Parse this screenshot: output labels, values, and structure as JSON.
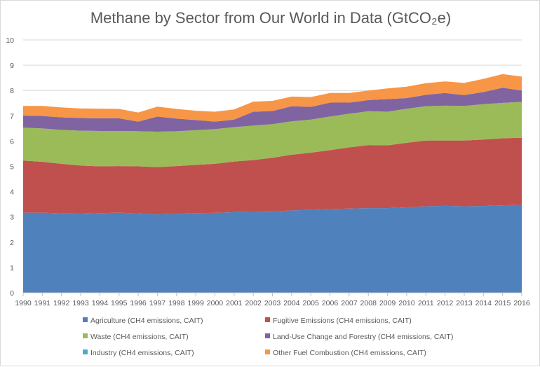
{
  "chart_data": {
    "type": "area",
    "stacked": true,
    "title": "Methane by Sector from Our World in Data (GtCO₂e)",
    "xlabel": "",
    "ylabel": "",
    "ylim": [
      0,
      10
    ],
    "yticks": [
      0,
      1,
      2,
      3,
      4,
      5,
      6,
      7,
      8,
      9,
      10
    ],
    "grid": true,
    "legend": "bottom",
    "x": [
      "1990",
      "1991",
      "1992",
      "1993",
      "1994",
      "1995",
      "1996",
      "1997",
      "1998",
      "1999",
      "2000",
      "2001",
      "2002",
      "2003",
      "2004",
      "2005",
      "2006",
      "2007",
      "2008",
      "2009",
      "2010",
      "2011",
      "2012",
      "2013",
      "2014",
      "2015",
      "2016"
    ],
    "series": [
      {
        "name": "Agriculture (CH4 emissions, CAIT)",
        "color": "#4f81bd",
        "values": [
          3.17,
          3.17,
          3.14,
          3.13,
          3.15,
          3.17,
          3.14,
          3.1,
          3.12,
          3.15,
          3.16,
          3.19,
          3.2,
          3.21,
          3.26,
          3.28,
          3.31,
          3.33,
          3.35,
          3.35,
          3.38,
          3.42,
          3.44,
          3.42,
          3.43,
          3.46,
          3.48
        ]
      },
      {
        "name": "Fugitive Emissions (CH4 emissions, CAIT)",
        "color": "#c0504d",
        "values": [
          2.06,
          2.01,
          1.96,
          1.9,
          1.85,
          1.84,
          1.86,
          1.87,
          1.89,
          1.91,
          1.94,
          2.0,
          2.05,
          2.13,
          2.2,
          2.26,
          2.33,
          2.42,
          2.49,
          2.48,
          2.55,
          2.6,
          2.58,
          2.6,
          2.63,
          2.65,
          2.65
        ]
      },
      {
        "name": "Waste (CH4 emissions, CAIT)",
        "color": "#9bbb59",
        "values": [
          1.3,
          1.32,
          1.34,
          1.38,
          1.4,
          1.39,
          1.39,
          1.4,
          1.38,
          1.37,
          1.37,
          1.36,
          1.36,
          1.33,
          1.32,
          1.31,
          1.33,
          1.33,
          1.34,
          1.33,
          1.35,
          1.36,
          1.38,
          1.37,
          1.4,
          1.4,
          1.42
        ]
      },
      {
        "name": "Land-Use Change and Forestry (CH4 emissions, CAIT)",
        "color": "#8064a2",
        "values": [
          0.48,
          0.49,
          0.5,
          0.5,
          0.5,
          0.5,
          0.38,
          0.6,
          0.5,
          0.4,
          0.3,
          0.3,
          0.55,
          0.52,
          0.6,
          0.5,
          0.55,
          0.44,
          0.44,
          0.5,
          0.42,
          0.45,
          0.5,
          0.43,
          0.48,
          0.6,
          0.45
        ]
      },
      {
        "name": "Industry (CH4 emissions, CAIT)",
        "color": "#4bacc6",
        "values": [
          0,
          0,
          0,
          0,
          0,
          0,
          0,
          0,
          0,
          0,
          0,
          0,
          0,
          0,
          0,
          0,
          0,
          0,
          0,
          0,
          0,
          0,
          0,
          0,
          0,
          0,
          0
        ]
      },
      {
        "name": "Other Fuel Combustion (CH4 emissions, CAIT)",
        "color": "#f79646",
        "values": [
          0.38,
          0.4,
          0.39,
          0.38,
          0.38,
          0.37,
          0.36,
          0.39,
          0.38,
          0.37,
          0.39,
          0.4,
          0.4,
          0.4,
          0.38,
          0.39,
          0.38,
          0.38,
          0.38,
          0.42,
          0.45,
          0.46,
          0.46,
          0.48,
          0.52,
          0.54,
          0.55
        ]
      }
    ]
  }
}
